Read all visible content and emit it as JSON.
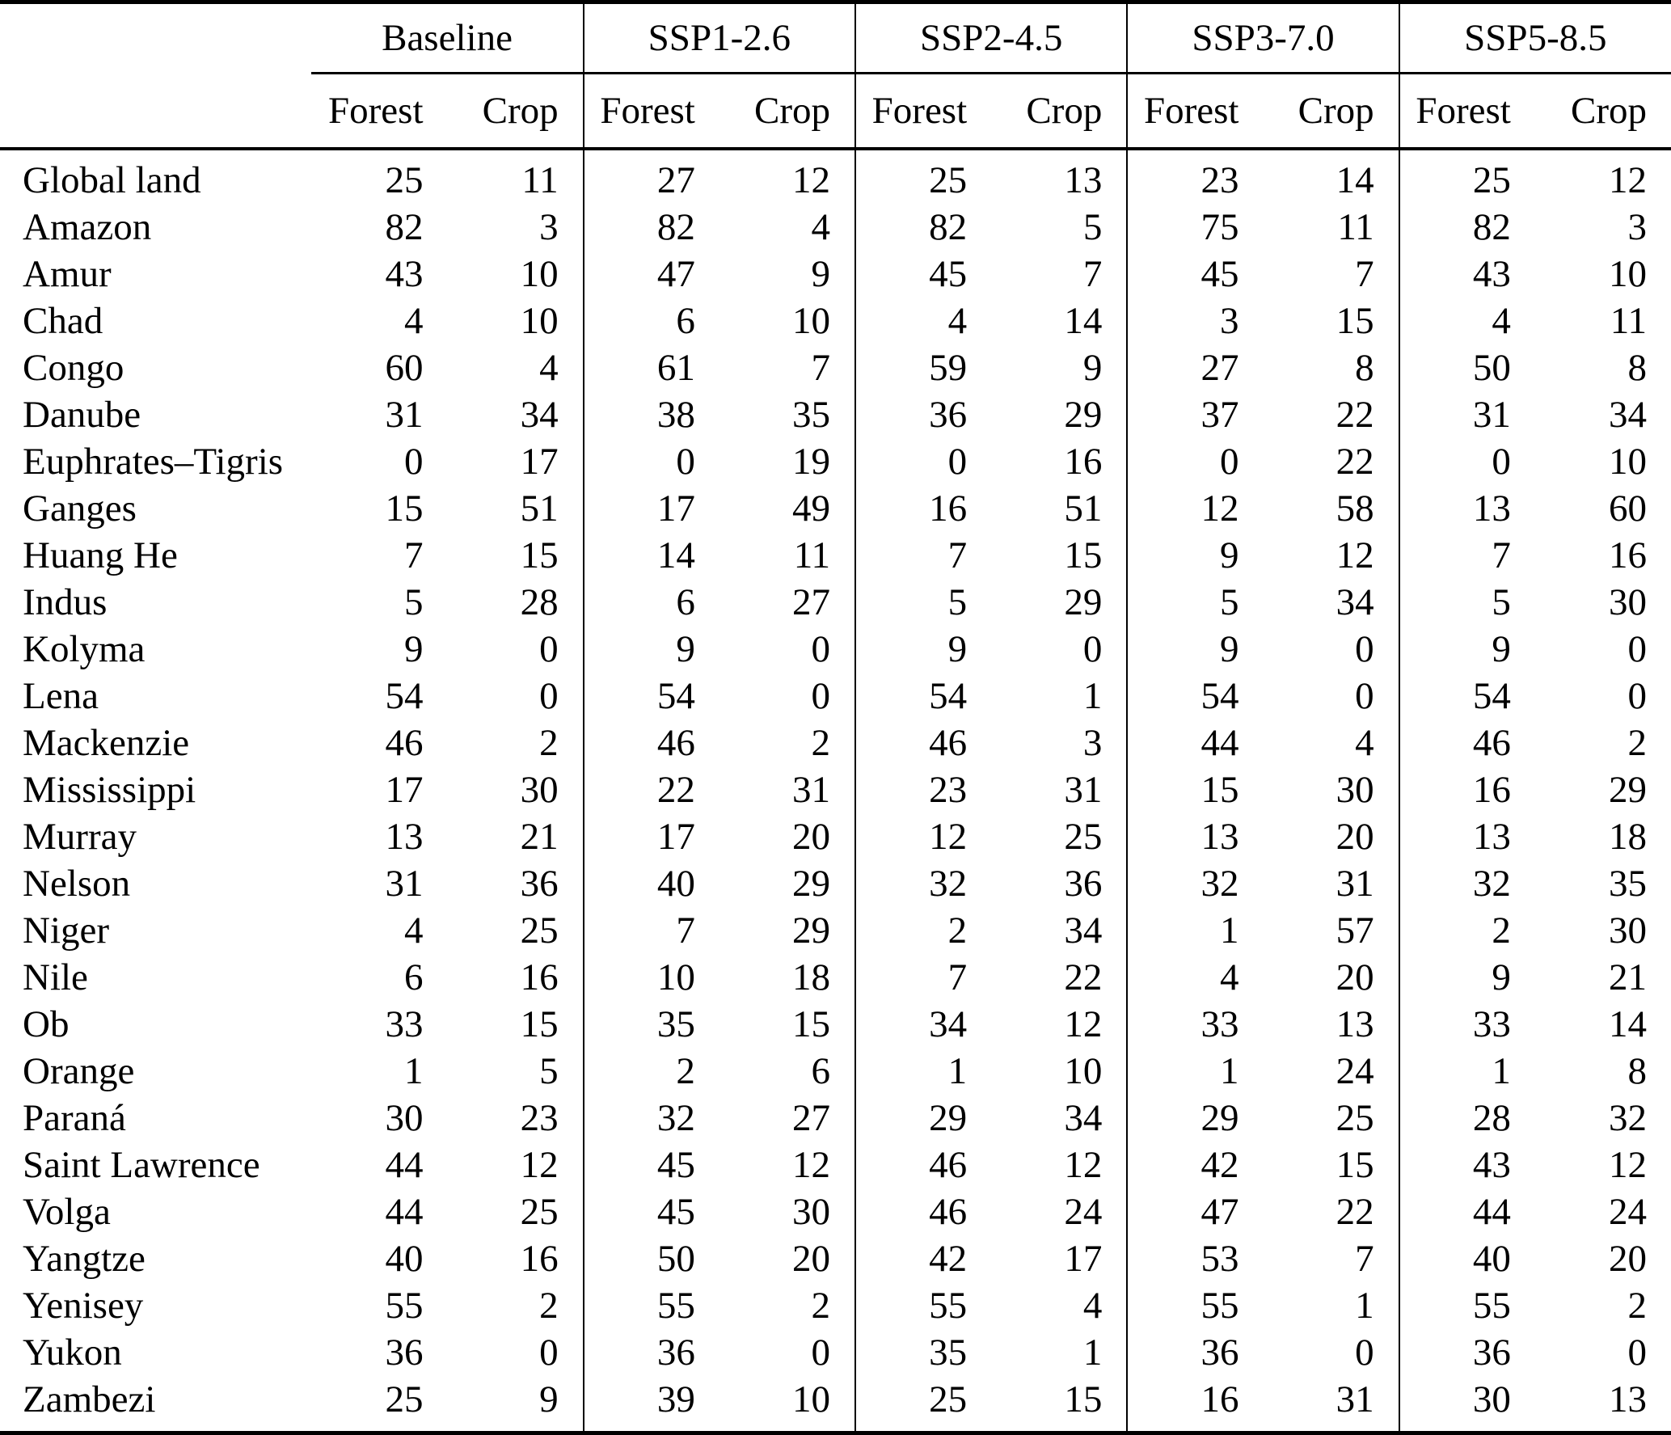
{
  "table": {
    "groups": [
      "Baseline",
      "SSP1-2.6",
      "SSP2-4.5",
      "SSP3-7.0",
      "SSP5-8.5"
    ],
    "subheaders": [
      "Forest",
      "Crop"
    ],
    "text_color": "#000000",
    "background_color": "#ffffff",
    "rows": [
      {
        "name": "Global land",
        "values": [
          25,
          11,
          27,
          12,
          25,
          13,
          23,
          14,
          25,
          12
        ]
      },
      {
        "name": "Amazon",
        "values": [
          82,
          3,
          82,
          4,
          82,
          5,
          75,
          11,
          82,
          3
        ]
      },
      {
        "name": "Amur",
        "values": [
          43,
          10,
          47,
          9,
          45,
          7,
          45,
          7,
          43,
          10
        ]
      },
      {
        "name": "Chad",
        "values": [
          4,
          10,
          6,
          10,
          4,
          14,
          3,
          15,
          4,
          11
        ]
      },
      {
        "name": "Congo",
        "values": [
          60,
          4,
          61,
          7,
          59,
          9,
          27,
          8,
          50,
          8
        ]
      },
      {
        "name": "Danube",
        "values": [
          31,
          34,
          38,
          35,
          36,
          29,
          37,
          22,
          31,
          34
        ]
      },
      {
        "name": "Euphrates–Tigris",
        "values": [
          0,
          17,
          0,
          19,
          0,
          16,
          0,
          22,
          0,
          10
        ]
      },
      {
        "name": "Ganges",
        "values": [
          15,
          51,
          17,
          49,
          16,
          51,
          12,
          58,
          13,
          60
        ]
      },
      {
        "name": "Huang He",
        "values": [
          7,
          15,
          14,
          11,
          7,
          15,
          9,
          12,
          7,
          16
        ]
      },
      {
        "name": "Indus",
        "values": [
          5,
          28,
          6,
          27,
          5,
          29,
          5,
          34,
          5,
          30
        ]
      },
      {
        "name": "Kolyma",
        "values": [
          9,
          0,
          9,
          0,
          9,
          0,
          9,
          0,
          9,
          0
        ]
      },
      {
        "name": "Lena",
        "values": [
          54,
          0,
          54,
          0,
          54,
          1,
          54,
          0,
          54,
          0
        ]
      },
      {
        "name": "Mackenzie",
        "values": [
          46,
          2,
          46,
          2,
          46,
          3,
          44,
          4,
          46,
          2
        ]
      },
      {
        "name": "Mississippi",
        "values": [
          17,
          30,
          22,
          31,
          23,
          31,
          15,
          30,
          16,
          29
        ]
      },
      {
        "name": "Murray",
        "values": [
          13,
          21,
          17,
          20,
          12,
          25,
          13,
          20,
          13,
          18
        ]
      },
      {
        "name": "Nelson",
        "values": [
          31,
          36,
          40,
          29,
          32,
          36,
          32,
          31,
          32,
          35
        ]
      },
      {
        "name": "Niger",
        "values": [
          4,
          25,
          7,
          29,
          2,
          34,
          1,
          57,
          2,
          30
        ]
      },
      {
        "name": "Nile",
        "values": [
          6,
          16,
          10,
          18,
          7,
          22,
          4,
          20,
          9,
          21
        ]
      },
      {
        "name": "Ob",
        "values": [
          33,
          15,
          35,
          15,
          34,
          12,
          33,
          13,
          33,
          14
        ]
      },
      {
        "name": "Orange",
        "values": [
          1,
          5,
          2,
          6,
          1,
          10,
          1,
          24,
          1,
          8
        ]
      },
      {
        "name": "Paraná",
        "values": [
          30,
          23,
          32,
          27,
          29,
          34,
          29,
          25,
          28,
          32
        ]
      },
      {
        "name": "Saint Lawrence",
        "values": [
          44,
          12,
          45,
          12,
          46,
          12,
          42,
          15,
          43,
          12
        ]
      },
      {
        "name": "Volga",
        "values": [
          44,
          25,
          45,
          30,
          46,
          24,
          47,
          22,
          44,
          24
        ]
      },
      {
        "name": "Yangtze",
        "values": [
          40,
          16,
          50,
          20,
          42,
          17,
          53,
          7,
          40,
          20
        ]
      },
      {
        "name": "Yenisey",
        "values": [
          55,
          2,
          55,
          2,
          55,
          4,
          55,
          1,
          55,
          2
        ]
      },
      {
        "name": "Yukon",
        "values": [
          36,
          0,
          36,
          0,
          35,
          1,
          36,
          0,
          36,
          0
        ]
      },
      {
        "name": "Zambezi",
        "values": [
          25,
          9,
          39,
          10,
          25,
          15,
          16,
          31,
          30,
          13
        ]
      }
    ]
  }
}
